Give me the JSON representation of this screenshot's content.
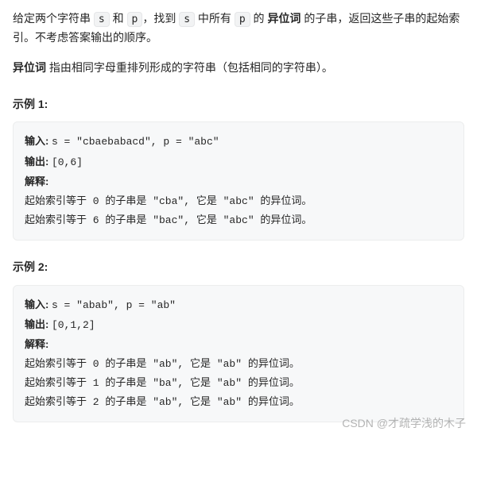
{
  "intro": {
    "part1": "给定两个字符串 ",
    "code1": "s",
    "part2": " 和 ",
    "code2": "p",
    "part3": "，找到 ",
    "code3": "s",
    "part4": " 中所有 ",
    "code4": "p",
    "part5": " 的 ",
    "bold1": "异位词",
    "part6": " 的子串，返回这些子串的起始索引。不考虑答案输出的顺序。"
  },
  "def": {
    "bold": "异位词",
    "rest": " 指由相同字母重排列形成的字符串（包括相同的字符串）。"
  },
  "example1": {
    "title": "示例 1:",
    "input_label": "输入: ",
    "input_value": "s = \"cbaebabacd\", p = \"abc\"",
    "output_label": "输出: ",
    "output_value": "[0,6]",
    "explain_label": "解释:",
    "line1": "起始索引等于 0 的子串是 \"cba\", 它是 \"abc\" 的异位词。",
    "line2": "起始索引等于 6 的子串是 \"bac\", 它是 \"abc\" 的异位词。"
  },
  "example2": {
    "title": "示例 2:",
    "input_label": "输入: ",
    "input_value": "s = \"abab\", p = \"ab\"",
    "output_label": "输出: ",
    "output_value": "[0,1,2]",
    "explain_label": "解释:",
    "line1": "起始索引等于 0 的子串是 \"ab\", 它是 \"ab\" 的异位词。",
    "line2": "起始索引等于 1 的子串是 \"ba\", 它是 \"ab\" 的异位词。",
    "line3": "起始索引等于 2 的子串是 \"ab\", 它是 \"ab\" 的异位词。"
  },
  "watermark": "CSDN @才疏学浅的木子",
  "colors": {
    "text": "#262626",
    "code_bg": "#f2f3f4",
    "code_border": "#e5e6e8",
    "box_bg": "#f7f8f9",
    "box_border": "#eceded",
    "watermark": "rgba(120,120,120,0.55)"
  }
}
